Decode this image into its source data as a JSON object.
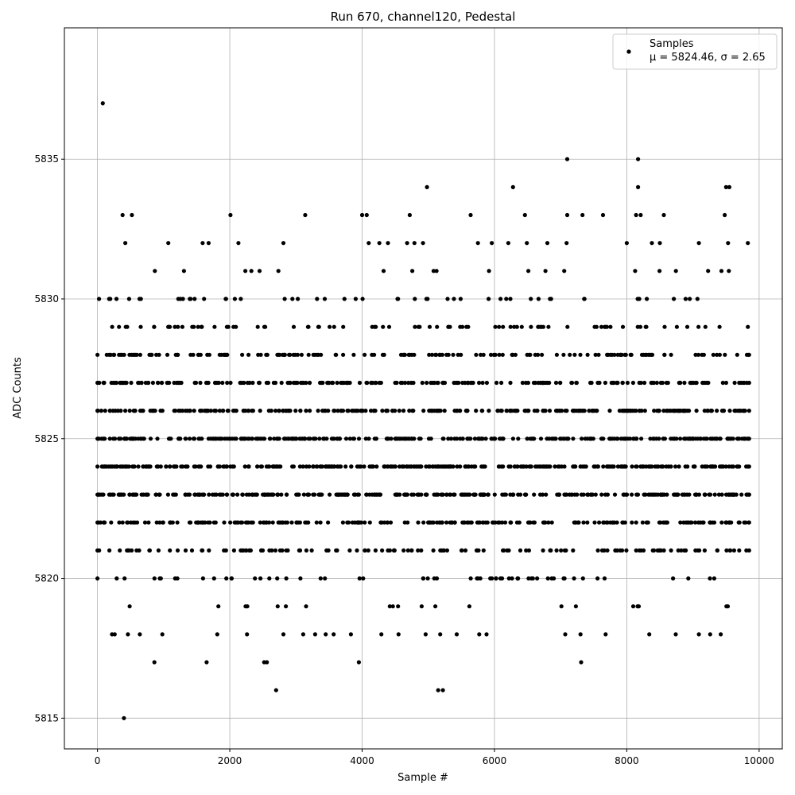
{
  "chart_data": {
    "type": "scatter",
    "title": "Run 670, channel120, Pedestal",
    "xlabel": "Sample #",
    "ylabel": "ADC Counts",
    "xlim": [
      -500,
      10350
    ],
    "ylim": [
      5813.9,
      5839.7
    ],
    "x_ticks": [
      0,
      2000,
      4000,
      6000,
      8000,
      10000
    ],
    "y_ticks": [
      5815,
      5820,
      5825,
      5830,
      5835
    ],
    "grid": true,
    "legend_position": "top-right",
    "marker_color": "#000000",
    "series": [
      {
        "name": "Samples",
        "stats_label": "μ = 5824.46, σ = 2.65",
        "n_samples": 9850,
        "level_fill": {
          "5815": 0.0001,
          "5816": 0.0003,
          "5817": 0.0008,
          "5818": 0.004,
          "5819": 0.012,
          "5820": 0.035,
          "5821": 0.08,
          "5822": 0.13,
          "5823": 0.17,
          "5824": 0.19,
          "5825": 0.19,
          "5826": 0.16,
          "5827": 0.13,
          "5828": 0.09,
          "5829": 0.05,
          "5830": 0.03,
          "5831": 0.012,
          "5832": 0.006,
          "5833": 0.002,
          "5834": 0.0008,
          "5835": 0.0002,
          "5837": 0.0001
        },
        "points": [
          [
            80,
            5837
          ],
          [
            400,
            5815
          ],
          [
            2700,
            5816
          ],
          [
            5150,
            5816
          ],
          [
            5220,
            5816
          ],
          [
            7100,
            5835
          ],
          [
            8170,
            5835
          ],
          [
            4980,
            5834
          ],
          [
            6280,
            5834
          ],
          [
            8170,
            5834
          ],
          [
            9500,
            5834
          ],
          [
            9550,
            5834
          ],
          [
            380,
            5833
          ],
          [
            520,
            5833
          ],
          [
            2010,
            5833
          ],
          [
            3140,
            5833
          ],
          [
            4000,
            5833
          ],
          [
            4070,
            5833
          ],
          [
            4720,
            5833
          ],
          [
            5640,
            5833
          ],
          [
            6460,
            5833
          ],
          [
            7100,
            5833
          ],
          [
            7330,
            5833
          ],
          [
            7640,
            5833
          ],
          [
            8140,
            5833
          ],
          [
            8210,
            5833
          ],
          [
            8560,
            5833
          ],
          [
            9480,
            5833
          ],
          [
            860,
            5817
          ],
          [
            1650,
            5817
          ],
          [
            2520,
            5817
          ],
          [
            2560,
            5817
          ],
          [
            3950,
            5817
          ],
          [
            7310,
            5817
          ],
          [
            220,
            5818
          ],
          [
            260,
            5818
          ],
          [
            460,
            5818
          ],
          [
            640,
            5818
          ],
          [
            980,
            5818
          ],
          [
            1810,
            5818
          ],
          [
            2260,
            5818
          ],
          [
            2810,
            5818
          ],
          [
            3110,
            5818
          ],
          [
            3290,
            5818
          ],
          [
            3450,
            5818
          ],
          [
            3570,
            5818
          ],
          [
            3830,
            5818
          ],
          [
            4290,
            5818
          ],
          [
            4550,
            5818
          ],
          [
            4960,
            5818
          ],
          [
            5180,
            5818
          ],
          [
            5430,
            5818
          ],
          [
            5770,
            5818
          ],
          [
            5880,
            5818
          ],
          [
            7070,
            5818
          ],
          [
            7300,
            5818
          ],
          [
            7680,
            5818
          ],
          [
            8340,
            5818
          ],
          [
            8740,
            5818
          ],
          [
            9090,
            5818
          ],
          [
            9260,
            5818
          ],
          [
            9420,
            5818
          ],
          [
            420,
            5832
          ],
          [
            1070,
            5832
          ],
          [
            1590,
            5832
          ],
          [
            1680,
            5832
          ],
          [
            2130,
            5832
          ],
          [
            2810,
            5832
          ],
          [
            4100,
            5832
          ],
          [
            4260,
            5832
          ],
          [
            4390,
            5832
          ],
          [
            4680,
            5832
          ],
          [
            4790,
            5832
          ],
          [
            4920,
            5832
          ],
          [
            5750,
            5832
          ],
          [
            5960,
            5832
          ],
          [
            6210,
            5832
          ],
          [
            6490,
            5832
          ],
          [
            6800,
            5832
          ],
          [
            7090,
            5832
          ],
          [
            8000,
            5832
          ],
          [
            8380,
            5832
          ],
          [
            8500,
            5832
          ],
          [
            9090,
            5832
          ],
          [
            9530,
            5832
          ],
          [
            9830,
            5832
          ]
        ]
      }
    ]
  }
}
